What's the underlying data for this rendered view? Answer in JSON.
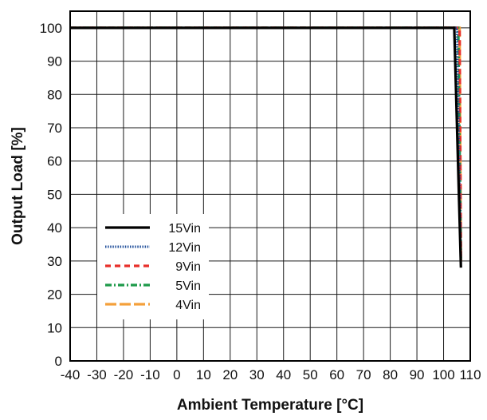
{
  "chart_data": {
    "type": "line",
    "title": "",
    "xlabel": "Ambient Temperature [°C]",
    "ylabel": "Output Load [%]",
    "xlim": [
      -40,
      110
    ],
    "ylim": [
      0,
      105
    ],
    "xticks": [
      -40,
      -30,
      -20,
      -10,
      0,
      10,
      20,
      30,
      40,
      50,
      60,
      70,
      80,
      90,
      100,
      110
    ],
    "yticks": [
      0,
      10,
      20,
      30,
      40,
      50,
      60,
      70,
      80,
      90,
      100
    ],
    "grid": true,
    "legend_position": "lower-left",
    "series": [
      {
        "name": "15Vin",
        "color": "#000000",
        "style": "solid",
        "x": [
          -40,
          104,
          106.5
        ],
        "y": [
          100,
          100,
          28
        ]
      },
      {
        "name": "12Vin",
        "color": "#1f4e9a",
        "style": "dotted",
        "x": [
          -40,
          105,
          106.5
        ],
        "y": [
          100,
          100,
          30
        ]
      },
      {
        "name": "9Vin",
        "color": "#e8302b",
        "style": "dashed",
        "x": [
          -40,
          106,
          106.5
        ],
        "y": [
          100,
          100,
          30
        ]
      },
      {
        "name": "5Vin",
        "color": "#1e9a4a",
        "style": "dashdot",
        "x": [
          -40,
          105.5,
          106.5
        ],
        "y": [
          100,
          100,
          30
        ]
      },
      {
        "name": "4Vin",
        "color": "#f4a03a",
        "style": "longdash",
        "x": [
          -40,
          106,
          106.5
        ],
        "y": [
          100,
          100,
          30
        ]
      }
    ]
  }
}
